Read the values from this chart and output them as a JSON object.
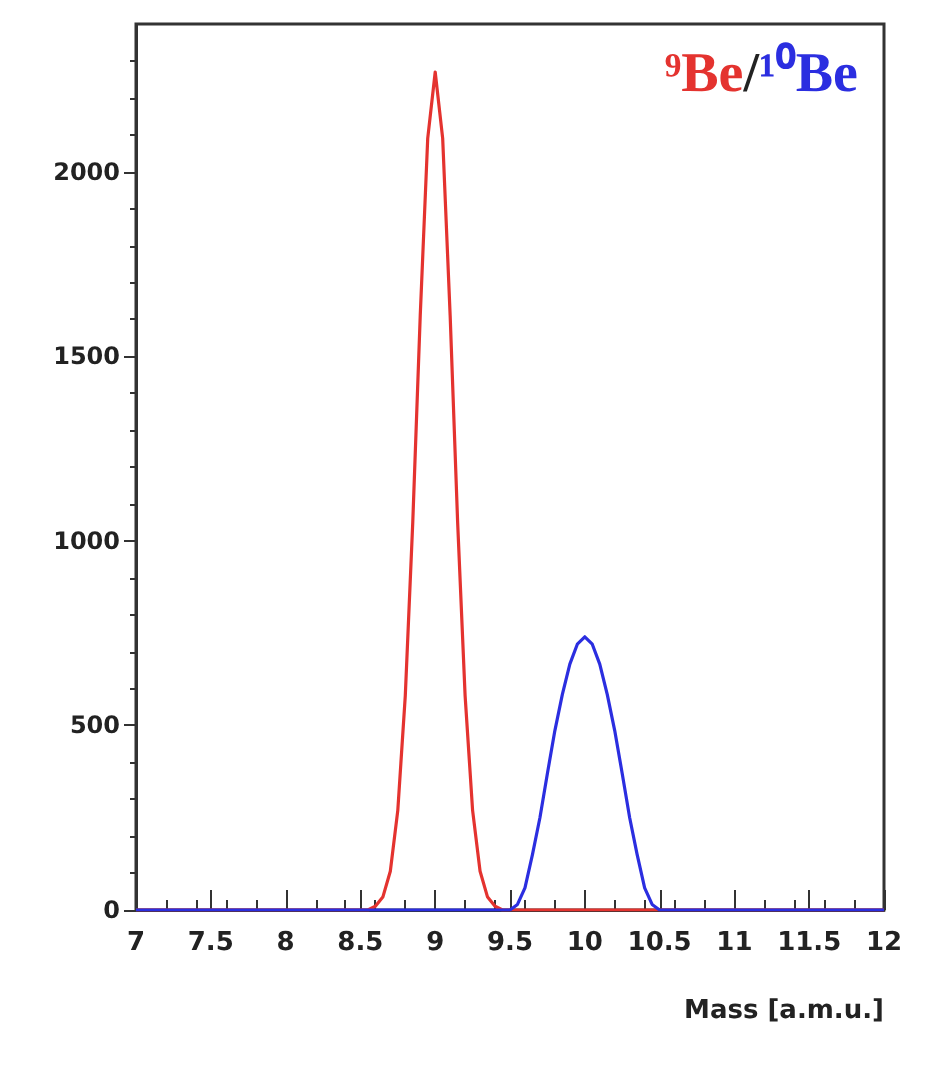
{
  "chart_data": {
    "type": "line",
    "xlabel": "Mass [a.m.u.]",
    "annotations": [
      "/"
    ],
    "xlim": [
      7,
      12
    ],
    "xticks": [
      7,
      7.5,
      8,
      8.5,
      9,
      9.5,
      10,
      10.5,
      11,
      11.5,
      12
    ],
    "ylim": [
      0,
      2400
    ],
    "yticks": [
      0,
      500,
      1000,
      1500,
      2000
    ],
    "grid": false,
    "marker": "none",
    "line_style": "solid",
    "series": [
      {
        "name": "⁹Be",
        "color": "#e4332f",
        "x": [
          7,
          8.5,
          8.55,
          8.6,
          8.65,
          8.7,
          8.75,
          8.8,
          8.85,
          8.9,
          8.95,
          9,
          9.05,
          9.1,
          9.15,
          9.2,
          9.25,
          9.3,
          9.35,
          9.4,
          9.45,
          9.5,
          12
        ],
        "values": [
          0,
          0,
          0,
          10,
          35,
          105,
          270,
          580,
          1050,
          1610,
          2090,
          2270,
          2090,
          1610,
          1050,
          580,
          270,
          105,
          35,
          10,
          0,
          0,
          0
        ]
      },
      {
        "name": "¹⁰Be",
        "color": "#2b2ee0",
        "x": [
          7,
          9.5,
          9.55,
          9.6,
          9.65,
          9.7,
          9.75,
          9.8,
          9.85,
          9.9,
          9.95,
          10,
          10.05,
          10.1,
          10.15,
          10.2,
          10.25,
          10.3,
          10.35,
          10.4,
          10.45,
          10.5,
          12
        ],
        "values": [
          0,
          0,
          15,
          60,
          150,
          250,
          370,
          486,
          584,
          666,
          720,
          740,
          720,
          666,
          584,
          486,
          370,
          250,
          150,
          60,
          15,
          0,
          0
        ]
      }
    ]
  }
}
